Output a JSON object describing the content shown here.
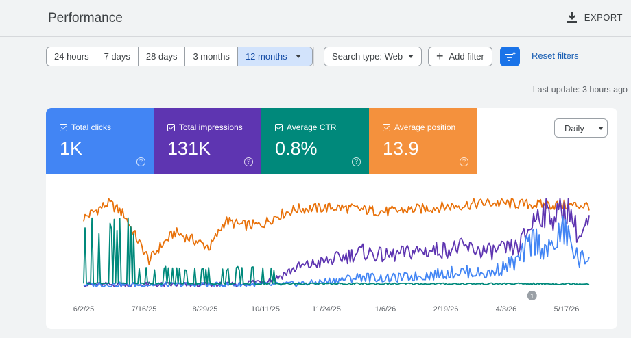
{
  "header": {
    "title": "Performance",
    "export_label": "EXPORT"
  },
  "date_range": {
    "options": [
      "24 hours",
      "7 days",
      "28 days",
      "3 months"
    ],
    "selected": "12 months"
  },
  "filters": {
    "search_type": "Search type: Web",
    "add_filter": "Add filter",
    "reset": "Reset filters"
  },
  "last_update": "Last update: 3 hours ago",
  "metrics": [
    {
      "label": "Total clicks",
      "value": "1K",
      "color": "#4285f4"
    },
    {
      "label": "Total impressions",
      "value": "131K",
      "color": "#5e35b1"
    },
    {
      "label": "Average CTR",
      "value": "0.8%",
      "color": "#00897b"
    },
    {
      "label": "Average position",
      "value": "13.9",
      "color": "#f4913d"
    }
  ],
  "granularity": "Daily",
  "chart_data": {
    "type": "line",
    "x_ticks": [
      "6/2/25",
      "7/16/25",
      "8/29/25",
      "10/11/25",
      "11/24/25",
      "1/6/26",
      "2/19/26",
      "4/3/26",
      "5/17/26"
    ],
    "annotation": "1",
    "series": [
      {
        "metric": "Average position",
        "color": "#e8710a",
        "anchors": [
          [
            0,
            0.78
          ],
          [
            0.02,
            0.85
          ],
          [
            0.05,
            0.95
          ],
          [
            0.08,
            0.82
          ],
          [
            0.1,
            0.6
          ],
          [
            0.13,
            0.3
          ],
          [
            0.15,
            0.45
          ],
          [
            0.18,
            0.62
          ],
          [
            0.21,
            0.55
          ],
          [
            0.25,
            0.45
          ],
          [
            0.28,
            0.75
          ],
          [
            0.31,
            0.7
          ],
          [
            0.35,
            0.7
          ],
          [
            0.38,
            0.8
          ],
          [
            0.42,
            0.88
          ],
          [
            0.5,
            0.9
          ],
          [
            0.6,
            0.85
          ],
          [
            0.7,
            0.9
          ],
          [
            0.8,
            0.95
          ],
          [
            0.9,
            0.93
          ],
          [
            1,
            0.92
          ]
        ]
      },
      {
        "metric": "Total impressions",
        "color": "#5e35b1",
        "anchors": [
          [
            0,
            0.03
          ],
          [
            0.3,
            0.03
          ],
          [
            0.38,
            0.1
          ],
          [
            0.42,
            0.22
          ],
          [
            0.47,
            0.28
          ],
          [
            0.52,
            0.35
          ],
          [
            0.55,
            0.4
          ],
          [
            0.6,
            0.35
          ],
          [
            0.65,
            0.4
          ],
          [
            0.7,
            0.42
          ],
          [
            0.75,
            0.45
          ],
          [
            0.8,
            0.4
          ],
          [
            0.86,
            0.45
          ],
          [
            0.9,
            0.85
          ],
          [
            0.93,
            0.8
          ],
          [
            0.96,
            0.9
          ],
          [
            0.98,
            0.55
          ],
          [
            1,
            0.72
          ]
        ]
      },
      {
        "metric": "Total clicks",
        "color": "#4285f4",
        "anchors": [
          [
            0,
            0.03
          ],
          [
            0.38,
            0.03
          ],
          [
            0.45,
            0.05
          ],
          [
            0.5,
            0.08
          ],
          [
            0.55,
            0.12
          ],
          [
            0.6,
            0.1
          ],
          [
            0.65,
            0.12
          ],
          [
            0.7,
            0.15
          ],
          [
            0.75,
            0.18
          ],
          [
            0.8,
            0.15
          ],
          [
            0.86,
            0.3
          ],
          [
            0.89,
            0.55
          ],
          [
            0.92,
            0.4
          ],
          [
            0.95,
            0.65
          ],
          [
            0.98,
            0.3
          ],
          [
            1,
            0.35
          ]
        ]
      },
      {
        "metric": "Average CTR",
        "color": "#00897b",
        "anchors": [
          [
            0,
            0.05
          ],
          [
            0.4,
            0.04
          ],
          [
            1,
            0.04
          ]
        ]
      }
    ]
  }
}
